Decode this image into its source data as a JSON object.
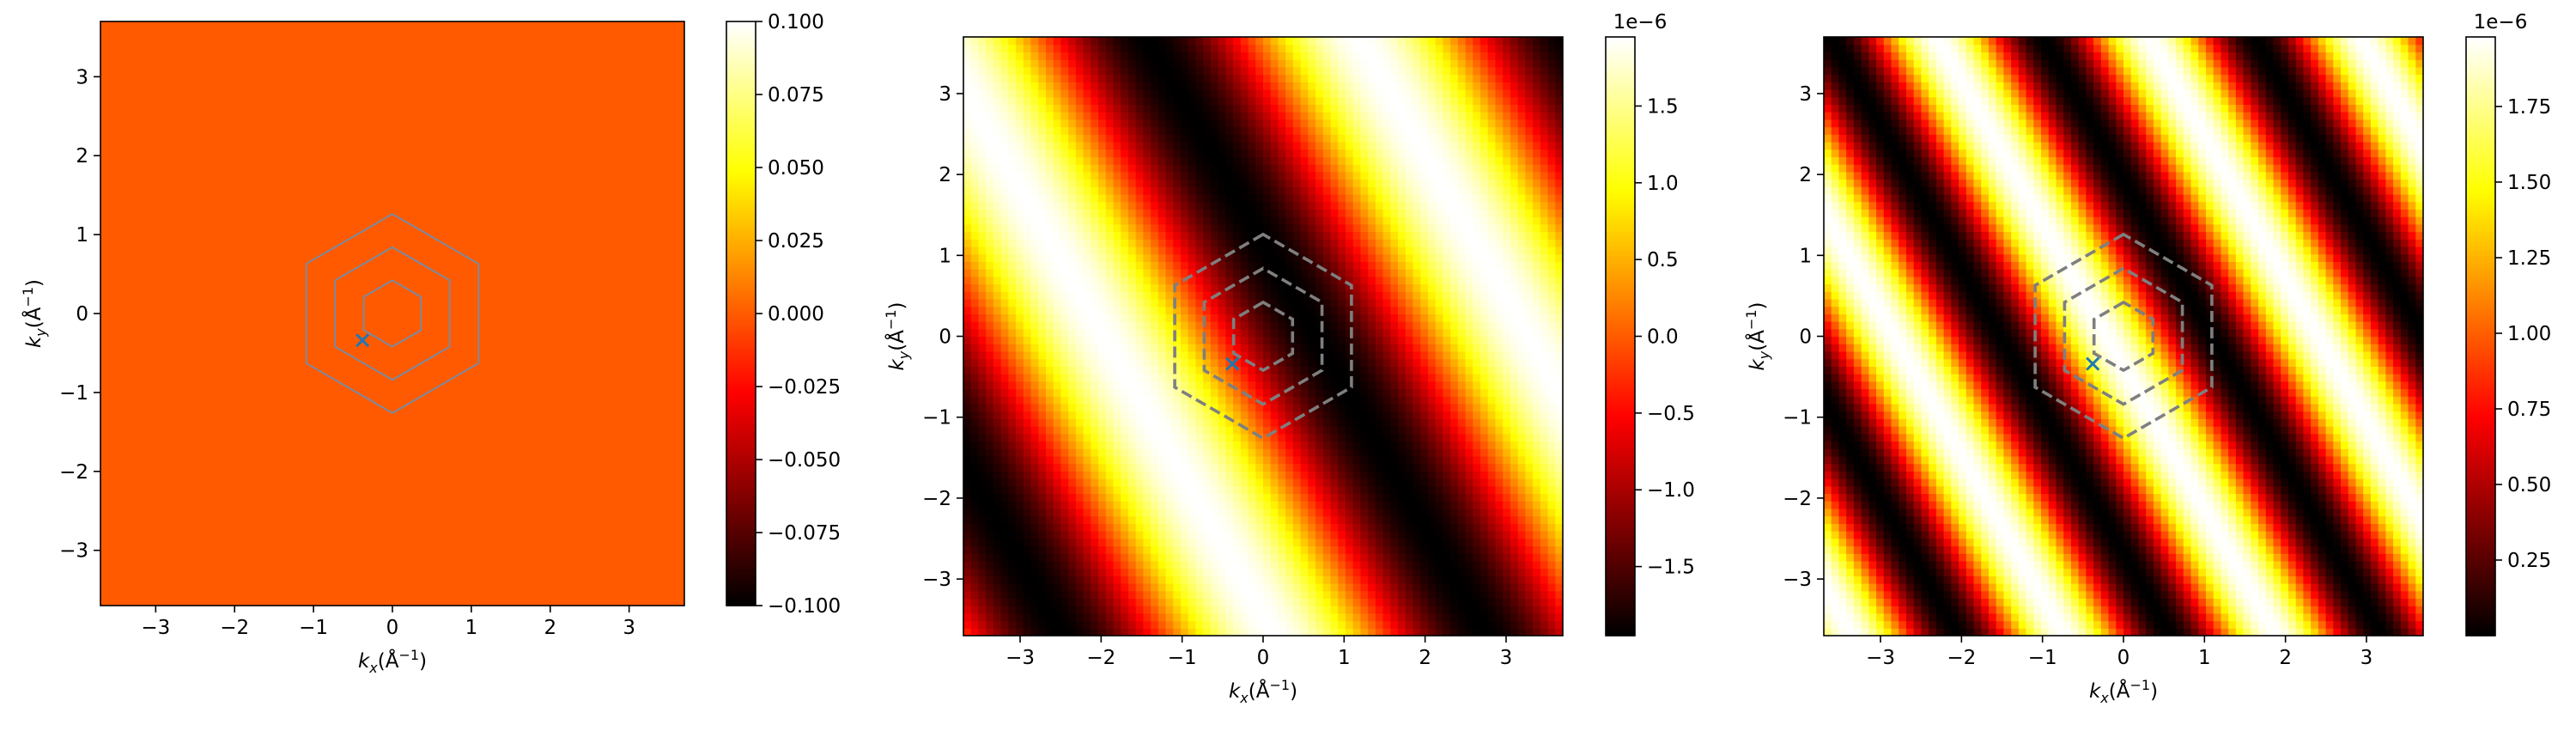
{
  "chart_data": [
    {
      "type": "heatmap",
      "xlabel": "k_x(Å^-1)",
      "ylabel": "k_y(Å^-1)",
      "xlim": [
        -3.7,
        3.7
      ],
      "ylim": [
        -3.7,
        3.7
      ],
      "xticks": [
        "−3",
        "−2",
        "−1",
        "0",
        "1",
        "2",
        "3"
      ],
      "yticks": [
        "−3",
        "−2",
        "−1",
        "0",
        "1",
        "2",
        "3"
      ],
      "colormap": "hot",
      "colorbar": {
        "min": -0.1,
        "max": 0.1,
        "ticks": [
          -0.1,
          -0.075,
          -0.05,
          -0.025,
          0.0,
          0.025,
          0.05,
          0.075,
          0.1
        ],
        "tick_labels": [
          "−0.100",
          "−0.075",
          "−0.050",
          "−0.025",
          "0.000",
          "0.025",
          "0.050",
          "0.075",
          "0.100"
        ],
        "offset_text": ""
      },
      "field": {
        "kind": "constant",
        "value": 0.0,
        "color": "#ff5a00"
      },
      "hexagons": {
        "radii": [
          0.42,
          0.84,
          1.26
        ],
        "style": "solid",
        "color": "#6e8fae"
      },
      "marker": {
        "symbol": "×",
        "x": -0.38,
        "y": -0.34,
        "color": "#1f77b4"
      }
    },
    {
      "type": "heatmap",
      "xlabel": "k_x(Å^-1)",
      "ylabel": "k_y(Å^-1)",
      "xlim": [
        -3.7,
        3.7
      ],
      "ylim": [
        -3.7,
        3.7
      ],
      "xticks": [
        "−3",
        "−2",
        "−1",
        "0",
        "1",
        "2",
        "3"
      ],
      "yticks": [
        "−3",
        "−2",
        "−1",
        "0",
        "1",
        "2",
        "3"
      ],
      "colormap": "hot",
      "colorbar": {
        "min": -1.95,
        "max": 1.95,
        "ticks": [
          -1.5,
          -1.0,
          -0.5,
          0.0,
          0.5,
          1.0,
          1.5
        ],
        "tick_labels": [
          "−1.5",
          "−1.0",
          "−0.5",
          "0.0",
          "0.5",
          "1.0",
          "1.5"
        ],
        "offset_text": "1e−6"
      },
      "field": {
        "kind": "cosine",
        "amplitude": 1.95,
        "offset": 0.0,
        "kx": 1.2,
        "ky": 0.68,
        "phase": 2.35
      },
      "hexagons": {
        "radii": [
          0.42,
          0.84,
          1.26
        ],
        "style": "dashed",
        "color": "#7f7f7f"
      },
      "marker": {
        "symbol": "×",
        "x": -0.38,
        "y": -0.34,
        "color": "#1f77b4"
      }
    },
    {
      "type": "heatmap",
      "xlabel": "k_x(Å^-1)",
      "ylabel": "k_y(Å^-1)",
      "xlim": [
        -3.7,
        3.7
      ],
      "ylim": [
        -3.7,
        3.7
      ],
      "xticks": [
        "−3",
        "−2",
        "−1",
        "0",
        "1",
        "2",
        "3"
      ],
      "yticks": [
        "−3",
        "−2",
        "−1",
        "0",
        "1",
        "2",
        "3"
      ],
      "colormap": "hot",
      "colorbar": {
        "min": 0.0,
        "max": 1.98,
        "ticks": [
          0.25,
          0.5,
          0.75,
          1.0,
          1.25,
          1.5,
          1.75
        ],
        "tick_labels": [
          "0.25",
          "0.50",
          "0.75",
          "1.00",
          "1.25",
          "1.50",
          "1.75"
        ],
        "offset_text": "1e−6"
      },
      "field": {
        "kind": "cosine",
        "amplitude": 0.99,
        "offset": 0.99,
        "kx": 2.4,
        "ky": 1.36,
        "phase": 0.5
      },
      "hexagons": {
        "radii": [
          0.42,
          0.84,
          1.26
        ],
        "style": "dashed",
        "color": "#7f7f7f"
      },
      "marker": {
        "symbol": "×",
        "x": -0.38,
        "y": -0.34,
        "color": "#1f77b4"
      }
    }
  ]
}
